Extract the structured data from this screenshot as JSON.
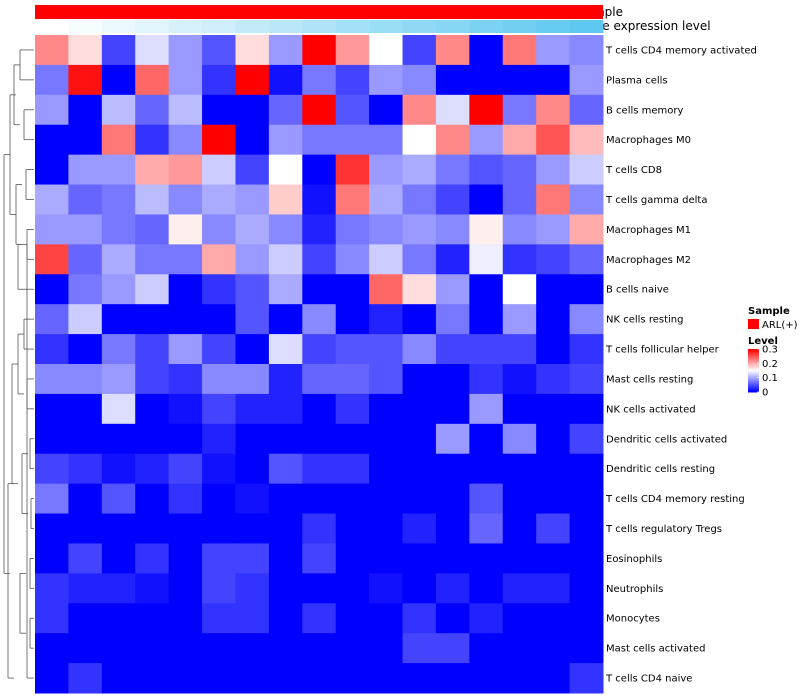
{
  "chart_data": {
    "type": "heatmap",
    "annotation_tracks": [
      {
        "name": "Sample",
        "color": "#ff0000"
      },
      {
        "name": "Gene expression level",
        "gradient": [
          "#ffffff",
          "#5ec8f0"
        ]
      }
    ],
    "rows": [
      "T cells CD4 memory activated",
      "Plasma cells",
      "B cells memory",
      "Macrophages M0",
      "T cells CD8",
      "T cells gamma delta",
      "Macrophages M1",
      "Macrophages M2",
      "B cells naive",
      "NK cells resting",
      "T cells follicular helper",
      "Mast cells resting",
      "NK cells activated",
      "Dendritic cells activated",
      "Dendritic cells resting",
      "T cells CD4 memory resting",
      "T cells regulatory  Tregs",
      "Eosinophils",
      "Neutrophils",
      "Monocytes",
      "Mast cells activated",
      "T cells CD4 naive"
    ],
    "n_columns": 17,
    "values": [
      [
        0.22,
        0.17,
        0.04,
        0.13,
        0.09,
        0.05,
        0.17,
        0.09,
        0.3,
        0.21,
        0.15,
        0.04,
        0.22,
        0.0,
        0.23,
        0.09,
        0.08
      ],
      [
        0.07,
        0.29,
        0.0,
        0.24,
        0.09,
        0.03,
        0.3,
        0.01,
        0.07,
        0.04,
        0.09,
        0.08,
        0.0,
        0.0,
        0.0,
        0.0,
        0.09
      ],
      [
        0.09,
        0.0,
        0.11,
        0.06,
        0.11,
        0.0,
        0.0,
        0.06,
        0.3,
        0.05,
        0.0,
        0.22,
        0.13,
        0.3,
        0.07,
        0.22,
        0.06
      ],
      [
        0.0,
        0.0,
        0.23,
        0.03,
        0.08,
        0.3,
        0.0,
        0.09,
        0.07,
        0.07,
        0.07,
        0.15,
        0.22,
        0.09,
        0.2,
        0.25,
        0.19
      ],
      [
        0.0,
        0.09,
        0.09,
        0.2,
        0.21,
        0.12,
        0.04,
        0.15,
        0.0,
        0.27,
        0.09,
        0.1,
        0.07,
        0.05,
        0.06,
        0.09,
        0.12
      ],
      [
        0.1,
        0.06,
        0.07,
        0.11,
        0.08,
        0.1,
        0.09,
        0.18,
        0.01,
        0.23,
        0.1,
        0.07,
        0.04,
        0.0,
        0.06,
        0.23,
        0.08
      ],
      [
        0.09,
        0.09,
        0.07,
        0.06,
        0.16,
        0.08,
        0.1,
        0.08,
        0.02,
        0.07,
        0.08,
        0.09,
        0.08,
        0.16,
        0.08,
        0.09,
        0.2
      ],
      [
        0.26,
        0.06,
        0.1,
        0.07,
        0.07,
        0.2,
        0.09,
        0.12,
        0.04,
        0.08,
        0.12,
        0.07,
        0.02,
        0.14,
        0.03,
        0.04,
        0.06
      ],
      [
        0.0,
        0.07,
        0.09,
        0.12,
        0.0,
        0.03,
        0.05,
        0.1,
        0.0,
        0.0,
        0.24,
        0.17,
        0.09,
        0.0,
        0.15,
        0.0,
        0.0
      ],
      [
        0.06,
        0.12,
        0.0,
        0.0,
        0.0,
        0.0,
        0.05,
        0.0,
        0.08,
        0.0,
        0.02,
        0.0,
        0.07,
        0.0,
        0.09,
        0.0,
        0.08
      ],
      [
        0.03,
        0.0,
        0.07,
        0.04,
        0.09,
        0.04,
        0.0,
        0.13,
        0.04,
        0.05,
        0.05,
        0.08,
        0.04,
        0.04,
        0.04,
        0.0,
        0.03
      ],
      [
        0.08,
        0.08,
        0.09,
        0.04,
        0.03,
        0.08,
        0.08,
        0.02,
        0.06,
        0.06,
        0.05,
        0.0,
        0.0,
        0.03,
        0.01,
        0.03,
        0.04
      ],
      [
        0.0,
        0.0,
        0.13,
        0.0,
        0.01,
        0.04,
        0.02,
        0.02,
        0.0,
        0.03,
        0.0,
        0.0,
        0.0,
        0.09,
        0.0,
        0.0,
        0.0
      ],
      [
        0.0,
        0.0,
        0.0,
        0.0,
        0.0,
        0.02,
        0.0,
        0.0,
        0.0,
        0.0,
        0.0,
        0.0,
        0.09,
        0.0,
        0.08,
        0.0,
        0.04
      ],
      [
        0.04,
        0.03,
        0.01,
        0.02,
        0.04,
        0.01,
        0.0,
        0.05,
        0.03,
        0.03,
        0.0,
        0.0,
        0.0,
        0.0,
        0.0,
        0.0,
        0.0
      ],
      [
        0.07,
        0.0,
        0.05,
        0.0,
        0.03,
        0.0,
        0.01,
        0.0,
        0.0,
        0.0,
        0.0,
        0.0,
        0.0,
        0.05,
        0.0,
        0.0,
        0.0
      ],
      [
        0.0,
        0.0,
        0.0,
        0.0,
        0.0,
        0.0,
        0.0,
        0.0,
        0.03,
        0.0,
        0.0,
        0.02,
        0.0,
        0.06,
        0.0,
        0.04,
        0.0
      ],
      [
        0.0,
        0.04,
        0.0,
        0.03,
        0.0,
        0.04,
        0.04,
        0.0,
        0.04,
        0.0,
        0.0,
        0.0,
        0.0,
        0.0,
        0.0,
        0.0,
        0.0
      ],
      [
        0.03,
        0.02,
        0.02,
        0.01,
        0.0,
        0.04,
        0.03,
        0.0,
        0.0,
        0.0,
        0.01,
        0.0,
        0.02,
        0.0,
        0.02,
        0.02,
        0.0
      ],
      [
        0.03,
        0.0,
        0.0,
        0.0,
        0.0,
        0.03,
        0.03,
        0.0,
        0.03,
        0.0,
        0.0,
        0.03,
        0.0,
        0.02,
        0.0,
        0.0,
        0.0
      ],
      [
        0.0,
        0.0,
        0.0,
        0.0,
        0.0,
        0.0,
        0.0,
        0.0,
        0.0,
        0.0,
        0.0,
        0.04,
        0.04,
        0.0,
        0.0,
        0.0,
        0.0
      ],
      [
        0.0,
        0.03,
        0.0,
        0.0,
        0.0,
        0.0,
        0.0,
        0.0,
        0.0,
        0.0,
        0.0,
        0.0,
        0.0,
        0.0,
        0.0,
        0.0,
        0.03
      ]
    ],
    "color_scale": {
      "low": "#0000ff",
      "mid": "#ffffff",
      "high": "#ff0000",
      "min": 0,
      "mid_value": 0.15,
      "max": 0.3
    },
    "legend": {
      "sample": {
        "title": "Sample",
        "entries": [
          {
            "label": "ARL(+)",
            "color": "#ff0000"
          }
        ]
      },
      "level": {
        "title": "Level",
        "ticks": [
          "0.3",
          "0.2",
          "0.1",
          "0"
        ],
        "tick_values": [
          0.3,
          0.2,
          0.1,
          0
        ]
      }
    },
    "dendrogram": "rows",
    "legend_position": "right"
  }
}
